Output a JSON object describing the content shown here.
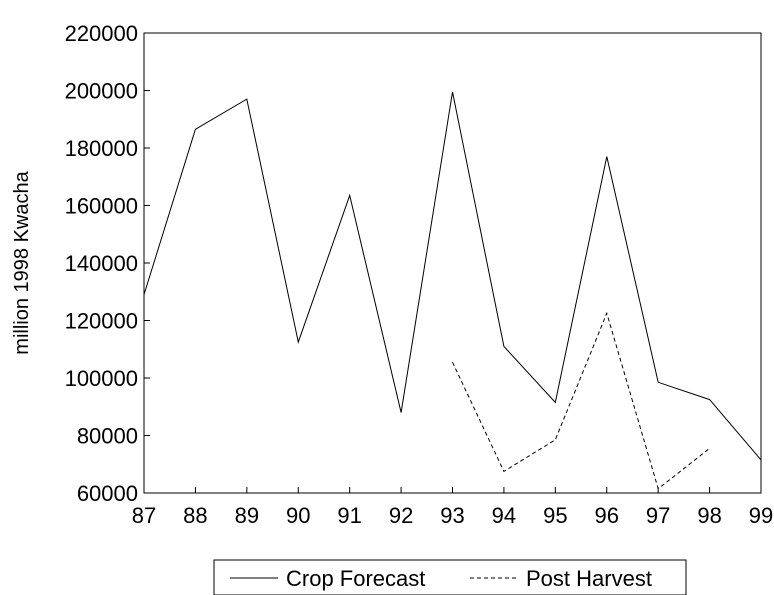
{
  "chart_data": {
    "type": "line",
    "title": "",
    "xlabel": "",
    "ylabel": "million 1998 Kwacha",
    "x": [
      "87",
      "88",
      "89",
      "90",
      "91",
      "92",
      "93",
      "94",
      "95",
      "96",
      "97",
      "98",
      "99"
    ],
    "ylim": [
      60000,
      220000
    ],
    "yticks": [
      "60000",
      "80000",
      "100000",
      "120000",
      "140000",
      "160000",
      "180000",
      "200000",
      "220000"
    ],
    "grid": false,
    "legend_placement": "bottom",
    "series": [
      {
        "name": "Crop Forecast",
        "style": "solid",
        "color": "#000000",
        "values": [
          129000,
          186500,
          197000,
          112500,
          163500,
          88000,
          199500,
          111000,
          91500,
          177000,
          98500,
          92500,
          71500
        ]
      },
      {
        "name": "Post Harvest",
        "style": "dashed",
        "color": "#000000",
        "values": [
          null,
          null,
          null,
          null,
          null,
          null,
          105500,
          67500,
          78500,
          122500,
          61500,
          75500,
          null
        ]
      }
    ]
  }
}
